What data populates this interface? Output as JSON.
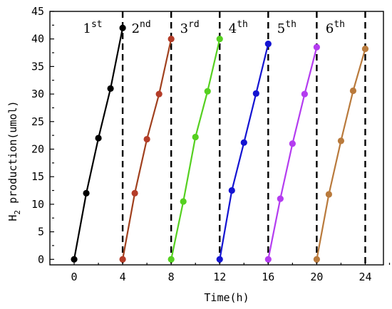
{
  "chart_data": {
    "type": "line",
    "title": "",
    "xlabel": "Time(h)",
    "ylabel_main": "H",
    "ylabel_sub": "2",
    "ylabel_rest": " production(umol)",
    "xlim": [
      -2,
      25.5
    ],
    "ylim": [
      -1,
      45
    ],
    "xticks": [
      0,
      4,
      8,
      12,
      16,
      20,
      24
    ],
    "xtick_labels": [
      "0",
      "4",
      "8",
      "12",
      "16",
      "20",
      "24"
    ],
    "yticks": [
      0,
      5,
      10,
      15,
      20,
      25,
      30,
      35,
      40,
      45
    ],
    "ytick_labels": [
      "0",
      "5",
      "10",
      "15",
      "20",
      "25",
      "30",
      "35",
      "40",
      "45"
    ],
    "grid": false,
    "dividers_x": [
      4,
      8,
      12,
      16,
      20,
      24
    ],
    "cycle_labels": [
      {
        "num": "1",
        "sup": "st",
        "x_center": 2
      },
      {
        "num": "2",
        "sup": "nd",
        "x_center": 6
      },
      {
        "num": "3",
        "sup": "rd",
        "x_center": 10
      },
      {
        "num": "4",
        "sup": "th",
        "x_center": 14
      },
      {
        "num": "5",
        "sup": "th",
        "x_center": 18
      },
      {
        "num": "6",
        "sup": "th",
        "x_center": 22
      }
    ],
    "series": [
      {
        "color": "#000000",
        "x": [
          0,
          1,
          2,
          3,
          4
        ],
        "y": [
          0,
          12,
          22,
          31,
          42
        ]
      },
      {
        "color": "#a0401e",
        "marker_color": "#b43c28",
        "x": [
          4,
          5,
          6,
          7,
          8
        ],
        "y": [
          0,
          12,
          21.8,
          30,
          40
        ]
      },
      {
        "color": "#55d020",
        "x": [
          8,
          9,
          10,
          11,
          12
        ],
        "y": [
          0,
          10.5,
          22.2,
          30.5,
          40
        ]
      },
      {
        "color": "#1414d2",
        "x": [
          12,
          13,
          14,
          15,
          16
        ],
        "y": [
          0,
          12.5,
          21.2,
          30.1,
          39.1
        ]
      },
      {
        "color": "#b43cf0",
        "x": [
          16,
          17,
          18,
          19,
          20
        ],
        "y": [
          0,
          11,
          21,
          30,
          38.5
        ]
      },
      {
        "color": "#b97a3c",
        "x": [
          20,
          21,
          22,
          23,
          24
        ],
        "y": [
          0,
          11.8,
          21.5,
          30.6,
          38.2
        ]
      }
    ]
  }
}
